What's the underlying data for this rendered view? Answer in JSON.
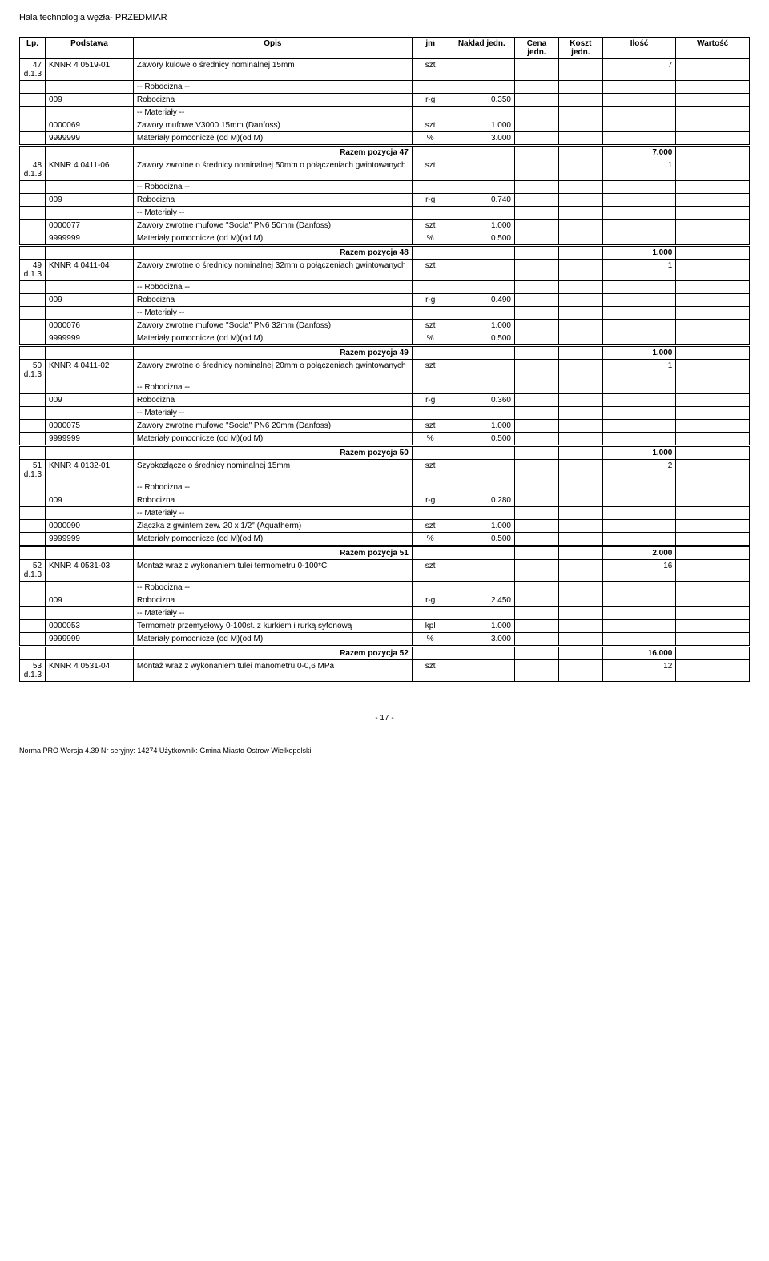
{
  "doc_header": "Hala technologia węzła- PRZEDMIAR",
  "columns": [
    "Lp.",
    "Podstawa",
    "Opis",
    "jm",
    "Nakład jedn.",
    "Cena jedn.",
    "Koszt jedn.",
    "Ilość",
    "Wartość"
  ],
  "label_robocizna_hdr": "-- Robocizna --",
  "label_materialy_hdr": "-- Materiały --",
  "items": [
    {
      "lp": "47",
      "lp2": "d.1.3",
      "podstawa": "KNNR 4 0519-01",
      "opis": "Zawory kulowe o średnicy nominalnej 15mm",
      "jm": "szt",
      "ilosc": "7",
      "robocizna": {
        "code": "009",
        "label": "Robocizna",
        "jm": "r-g",
        "nakl": "0.350"
      },
      "materialy": [
        {
          "code": "0000069",
          "label": "Zawory mufowe V3000  15mm (Danfoss)",
          "jm": "szt",
          "nakl": "1.000"
        },
        {
          "code": "9999999",
          "label": "Materiały pomocnicze (od M)(od M)",
          "jm": "%",
          "nakl": "3.000"
        }
      ],
      "razem_label": "Razem pozycja 47",
      "razem_val": "7.000"
    },
    {
      "lp": "48",
      "lp2": "d.1.3",
      "podstawa": "KNNR 4 0411-06",
      "opis": "Zawory zwrotne o średnicy nominalnej 50mm o połączeniach gwintowanych",
      "jm": "szt",
      "ilosc": "1",
      "robocizna": {
        "code": "009",
        "label": "Robocizna",
        "jm": "r-g",
        "nakl": "0.740"
      },
      "materialy": [
        {
          "code": "0000077",
          "label": "Zawory zwrotne mufowe \"Socla\" PN6 50mm (Danfoss)",
          "jm": "szt",
          "nakl": "1.000"
        },
        {
          "code": "9999999",
          "label": "Materiały pomocnicze (od M)(od M)",
          "jm": "%",
          "nakl": "0.500"
        }
      ],
      "razem_label": "Razem pozycja 48",
      "razem_val": "1.000"
    },
    {
      "lp": "49",
      "lp2": "d.1.3",
      "podstawa": "KNNR 4 0411-04",
      "opis": "Zawory zwrotne o średnicy nominalnej 32mm o połączeniach gwintowanych",
      "jm": "szt",
      "ilosc": "1",
      "robocizna": {
        "code": "009",
        "label": "Robocizna",
        "jm": "r-g",
        "nakl": "0.490"
      },
      "materialy": [
        {
          "code": "0000076",
          "label": "Zawory zwrotne mufowe \"Socla\" PN6 32mm (Danfoss)",
          "jm": "szt",
          "nakl": "1.000"
        },
        {
          "code": "9999999",
          "label": "Materiały pomocnicze (od M)(od M)",
          "jm": "%",
          "nakl": "0.500"
        }
      ],
      "razem_label": "Razem pozycja 49",
      "razem_val": "1.000"
    },
    {
      "lp": "50",
      "lp2": "d.1.3",
      "podstawa": "KNNR 4 0411-02",
      "opis": "Zawory zwrotne o średnicy nominalnej 20mm o połączeniach gwintowanych",
      "jm": "szt",
      "ilosc": "1",
      "robocizna": {
        "code": "009",
        "label": "Robocizna",
        "jm": "r-g",
        "nakl": "0.360"
      },
      "materialy": [
        {
          "code": "0000075",
          "label": "Zawory zwrotne mufowe \"Socla\" PN6 20mm (Danfoss)",
          "jm": "szt",
          "nakl": "1.000"
        },
        {
          "code": "9999999",
          "label": "Materiały pomocnicze (od M)(od M)",
          "jm": "%",
          "nakl": "0.500"
        }
      ],
      "razem_label": "Razem pozycja 50",
      "razem_val": "1.000"
    },
    {
      "lp": "51",
      "lp2": "d.1.3",
      "podstawa": "KNNR 4 0132-01",
      "opis": "Szybkozłącze o średnicy nominalnej 15mm",
      "jm": "szt",
      "ilosc": "2",
      "robocizna": {
        "code": "009",
        "label": "Robocizna",
        "jm": "r-g",
        "nakl": "0.280"
      },
      "materialy": [
        {
          "code": "0000090",
          "label": "Złączka z gwintem zew. 20 x 1/2\" (Aquatherm)",
          "jm": "szt",
          "nakl": "1.000"
        },
        {
          "code": "9999999",
          "label": "Materiały pomocnicze (od M)(od M)",
          "jm": "%",
          "nakl": "0.500"
        }
      ],
      "razem_label": "Razem pozycja 51",
      "razem_val": "2.000"
    },
    {
      "lp": "52",
      "lp2": "d.1.3",
      "podstawa": "KNNR 4 0531-03",
      "opis": "Montaż wraz z wykonaniem tulei termometru 0-100*C",
      "jm": "szt",
      "ilosc": "16",
      "robocizna": {
        "code": "009",
        "label": "Robocizna",
        "jm": "r-g",
        "nakl": "2.450"
      },
      "materialy": [
        {
          "code": "0000053",
          "label": "Termometr przemysłowy 0-100st. z kurkiem i rurką syfonową",
          "jm": "kpl",
          "nakl": "1.000"
        },
        {
          "code": "9999999",
          "label": "Materiały pomocnicze (od M)(od M)",
          "jm": "%",
          "nakl": "3.000"
        }
      ],
      "razem_label": "Razem pozycja 52",
      "razem_val": "16.000"
    },
    {
      "lp": "53",
      "lp2": "d.1.3",
      "podstawa": "KNNR 4 0531-04",
      "opis": "Montaż wraz z wykonaniem tulei manometru 0-0,6 MPa",
      "jm": "szt",
      "ilosc": "12",
      "robocizna": null,
      "materialy": [],
      "razem_label": null,
      "razem_val": null
    }
  ],
  "page_number": "- 17 -",
  "footer": "Norma PRO Wersja 4.39 Nr seryjny: 14274 Użytkownik: Gmina Miasto Ostrow Wielkopolski"
}
